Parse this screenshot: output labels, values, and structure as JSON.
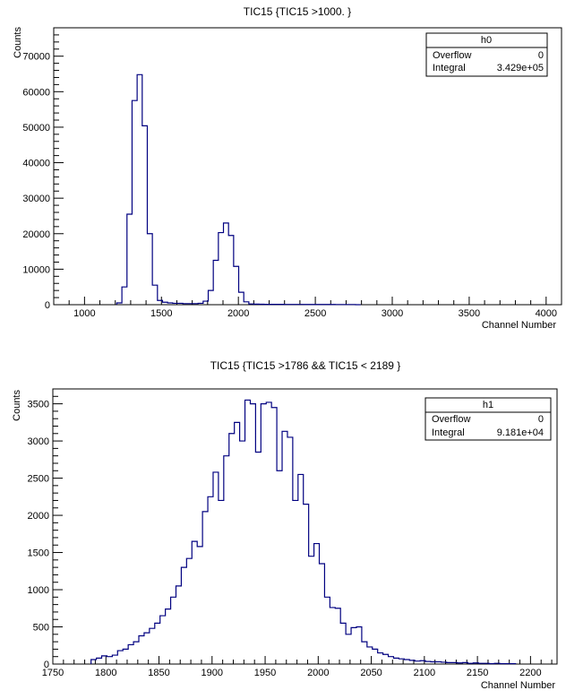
{
  "chart_data": [
    {
      "type": "histogram",
      "title": "TIC15 {TIC15 >1000. }",
      "xlabel": "Channel Number",
      "ylabel": "Counts",
      "xlim": [
        800,
        4100
      ],
      "ylim": [
        0,
        78000
      ],
      "xticks": [
        1000,
        1500,
        2000,
        2500,
        3000,
        3500,
        4000
      ],
      "yticks": [
        0,
        10000,
        20000,
        30000,
        40000,
        50000,
        60000,
        70000
      ],
      "line_color": "#000080",
      "stats": {
        "name": "h0",
        "overflow_label": "Overflow",
        "overflow": "0",
        "integral_label": "Integral",
        "integral": "3.429e+05"
      },
      "bin_width": 33,
      "bins_x": [
        1210,
        1243,
        1276,
        1309,
        1342,
        1375,
        1408,
        1441,
        1474,
        1507,
        1540,
        1573,
        1606,
        1639,
        1672,
        1705,
        1738,
        1771,
        1804,
        1837,
        1870,
        1903,
        1936,
        1969,
        2002,
        2035,
        2068,
        2101,
        2134,
        2167,
        2200,
        2233,
        2266,
        2299,
        2332,
        2365,
        2398,
        2431,
        2464,
        2497,
        2530,
        2563,
        2596,
        2629,
        2662,
        2695,
        2728,
        2761
      ],
      "values": [
        500,
        5000,
        25500,
        57500,
        64800,
        50400,
        20000,
        5500,
        1200,
        700,
        500,
        400,
        400,
        300,
        300,
        300,
        400,
        1000,
        4000,
        12500,
        20300,
        23000,
        19500,
        10800,
        3500,
        800,
        200,
        150,
        120,
        100,
        100,
        90,
        90,
        80,
        80,
        80,
        80,
        70,
        70,
        70,
        60,
        60,
        60,
        50,
        50,
        50,
        50,
        0
      ]
    },
    {
      "type": "histogram",
      "title": "TIC15 {TIC15 >1786 && TIC15 < 2189 }",
      "xlabel": "Channel Number",
      "ylabel": "Counts",
      "xlim": [
        1750,
        2225
      ],
      "ylim": [
        0,
        3700
      ],
      "xticks": [
        1750,
        1800,
        1850,
        1900,
        1950,
        2000,
        2050,
        2100,
        2150,
        2200
      ],
      "yticks": [
        0,
        500,
        1000,
        1500,
        2000,
        2500,
        3000,
        3500
      ],
      "line_color": "#000080",
      "stats": {
        "name": "h1",
        "overflow_label": "Overflow",
        "overflow": "0",
        "integral_label": "Integral",
        "integral": "9.181e+04"
      },
      "bin_width": 5,
      "bins_x": [
        1786,
        1791,
        1796,
        1801,
        1806,
        1811,
        1816,
        1821,
        1826,
        1831,
        1836,
        1841,
        1846,
        1851,
        1856,
        1861,
        1866,
        1871,
        1876,
        1881,
        1886,
        1891,
        1896,
        1901,
        1906,
        1911,
        1916,
        1921,
        1926,
        1931,
        1936,
        1941,
        1946,
        1951,
        1956,
        1961,
        1966,
        1971,
        1976,
        1981,
        1986,
        1991,
        1996,
        2001,
        2006,
        2011,
        2016,
        2021,
        2026,
        2031,
        2036,
        2041,
        2046,
        2051,
        2056,
        2061,
        2066,
        2071,
        2076,
        2081,
        2086,
        2091,
        2096,
        2101,
        2106,
        2111,
        2116,
        2121,
        2126,
        2131,
        2136,
        2141,
        2146,
        2151,
        2156,
        2161,
        2166,
        2171,
        2176,
        2181
      ],
      "values": [
        60,
        80,
        110,
        100,
        120,
        180,
        200,
        260,
        300,
        380,
        420,
        480,
        550,
        650,
        740,
        900,
        1050,
        1300,
        1420,
        1650,
        1580,
        2050,
        2250,
        2580,
        2200,
        2800,
        3100,
        3250,
        3000,
        3550,
        3500,
        2850,
        3500,
        3520,
        3450,
        2600,
        3130,
        3050,
        2200,
        2550,
        2150,
        1450,
        1620,
        1350,
        900,
        760,
        750,
        550,
        400,
        490,
        500,
        300,
        230,
        200,
        150,
        130,
        100,
        80,
        70,
        60,
        50,
        40,
        45,
        35,
        30,
        30,
        25,
        20,
        20,
        15,
        20,
        10,
        15,
        10,
        10,
        5,
        10,
        5,
        5,
        5
      ]
    }
  ]
}
